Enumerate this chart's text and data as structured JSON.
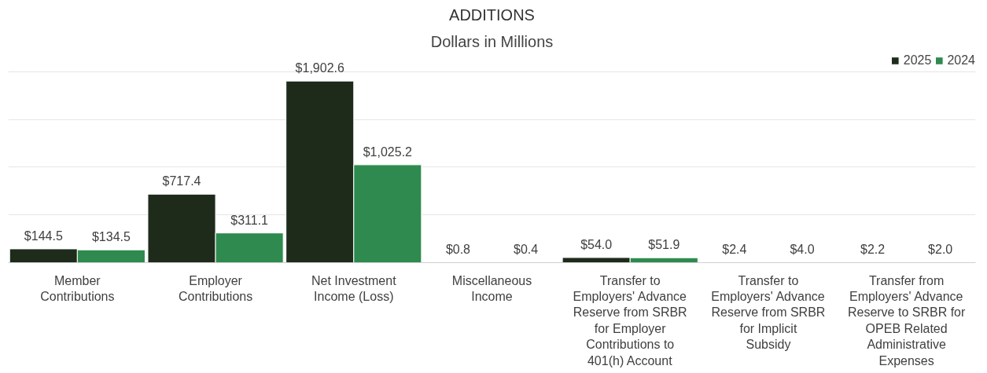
{
  "chart_data": {
    "type": "bar",
    "title": "ADDITIONS",
    "subtitle": "Dollars in Millions",
    "categories": [
      "Member Contributions",
      "Employer Contributions",
      "Net Investment Income (Loss)",
      "Miscellaneous Income",
      "Transfer to Employers' Advance Reserve from SRBR for Employer Contributions to 401(h) Account",
      "Transfer to Employers' Advance Reserve from SRBR for Implicit Subsidy",
      "Transfer from Employers' Advance Reserve to SRBR for OPEB Related Administrative Expenses"
    ],
    "series": [
      {
        "name": "2025",
        "color": "#1e2b1b",
        "values": [
          144.5,
          717.4,
          1902.6,
          0.8,
          54.0,
          2.4,
          2.2
        ],
        "value_labels": [
          "$144.5",
          "$717.4",
          "$1,902.6",
          "$0.8",
          "$54.0",
          "$2.4",
          "$2.2"
        ]
      },
      {
        "name": "2024",
        "color": "#2e8a4e",
        "values": [
          134.5,
          311.1,
          1025.2,
          0.4,
          51.9,
          4.0,
          2.0
        ],
        "value_labels": [
          "$134.5",
          "$311.1",
          "$1,025.2",
          "$0.4",
          "$51.9",
          "$4.0",
          "$2.0"
        ]
      }
    ],
    "grid": "y",
    "legend": "top right",
    "tick_labels": "x"
  }
}
